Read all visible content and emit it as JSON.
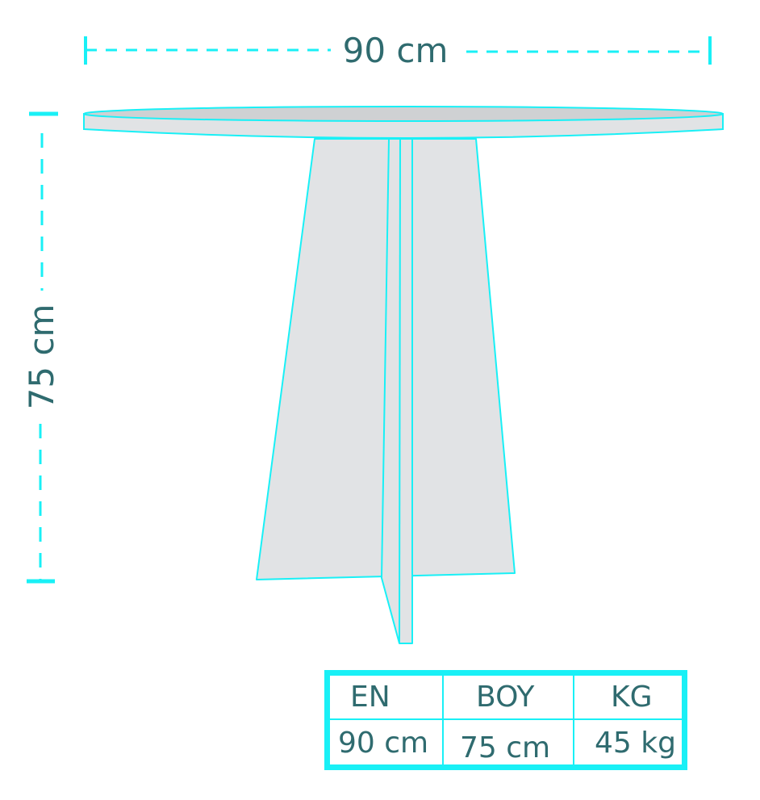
{
  "dimensions": {
    "width_label": "90 cm",
    "height_label": "75 cm"
  },
  "specs_table": {
    "headers": [
      "EN",
      "BOY",
      "KG"
    ],
    "values": [
      "90 cm",
      "75 cm",
      "45 kg"
    ]
  },
  "colors": {
    "outline": "#19f0f6",
    "text": "#2f6b6f",
    "table_fill": "#e1e3e5",
    "table_top_surface": "#cfd1d3"
  }
}
